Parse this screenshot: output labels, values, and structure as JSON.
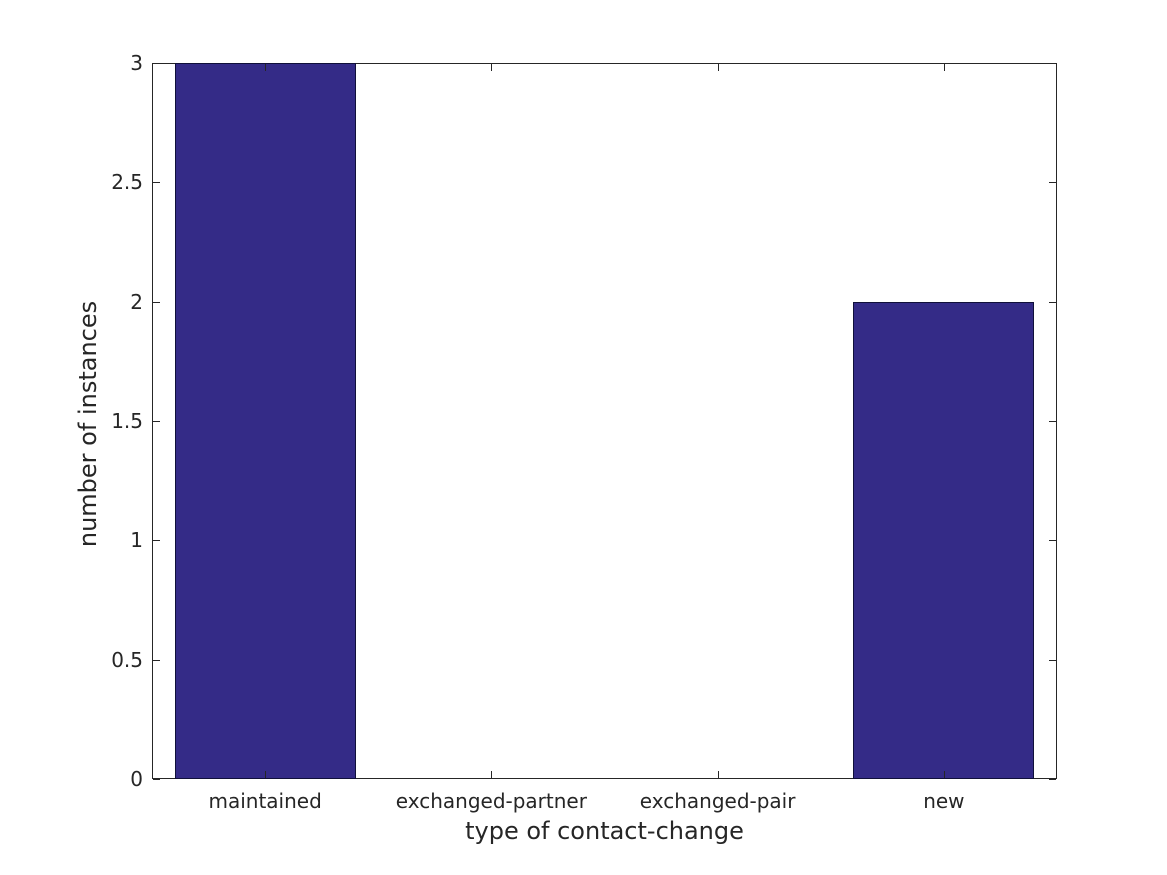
{
  "chart_data": {
    "type": "bar",
    "title": "",
    "xlabel": "type of contact-change",
    "ylabel": "number of instances",
    "categories": [
      "maintained",
      "exchanged-partner",
      "exchanged-pair",
      "new"
    ],
    "values": [
      3,
      0,
      0,
      2
    ],
    "ylim": [
      0,
      3
    ],
    "yticks": [
      0,
      0.5,
      1,
      1.5,
      2,
      2.5,
      3
    ],
    "ytick_labels": [
      "0",
      "0.5",
      "1",
      "1.5",
      "2",
      "2.5",
      "3"
    ],
    "bar_color": "#342b87",
    "bar_edge_color": "#10103a",
    "axis_color": "#262626",
    "text_color": "#262626",
    "background": "#ffffff",
    "bar_width_fraction": 0.8,
    "grid": false,
    "legend_position": "none",
    "tick_direction": "in",
    "box": true
  }
}
